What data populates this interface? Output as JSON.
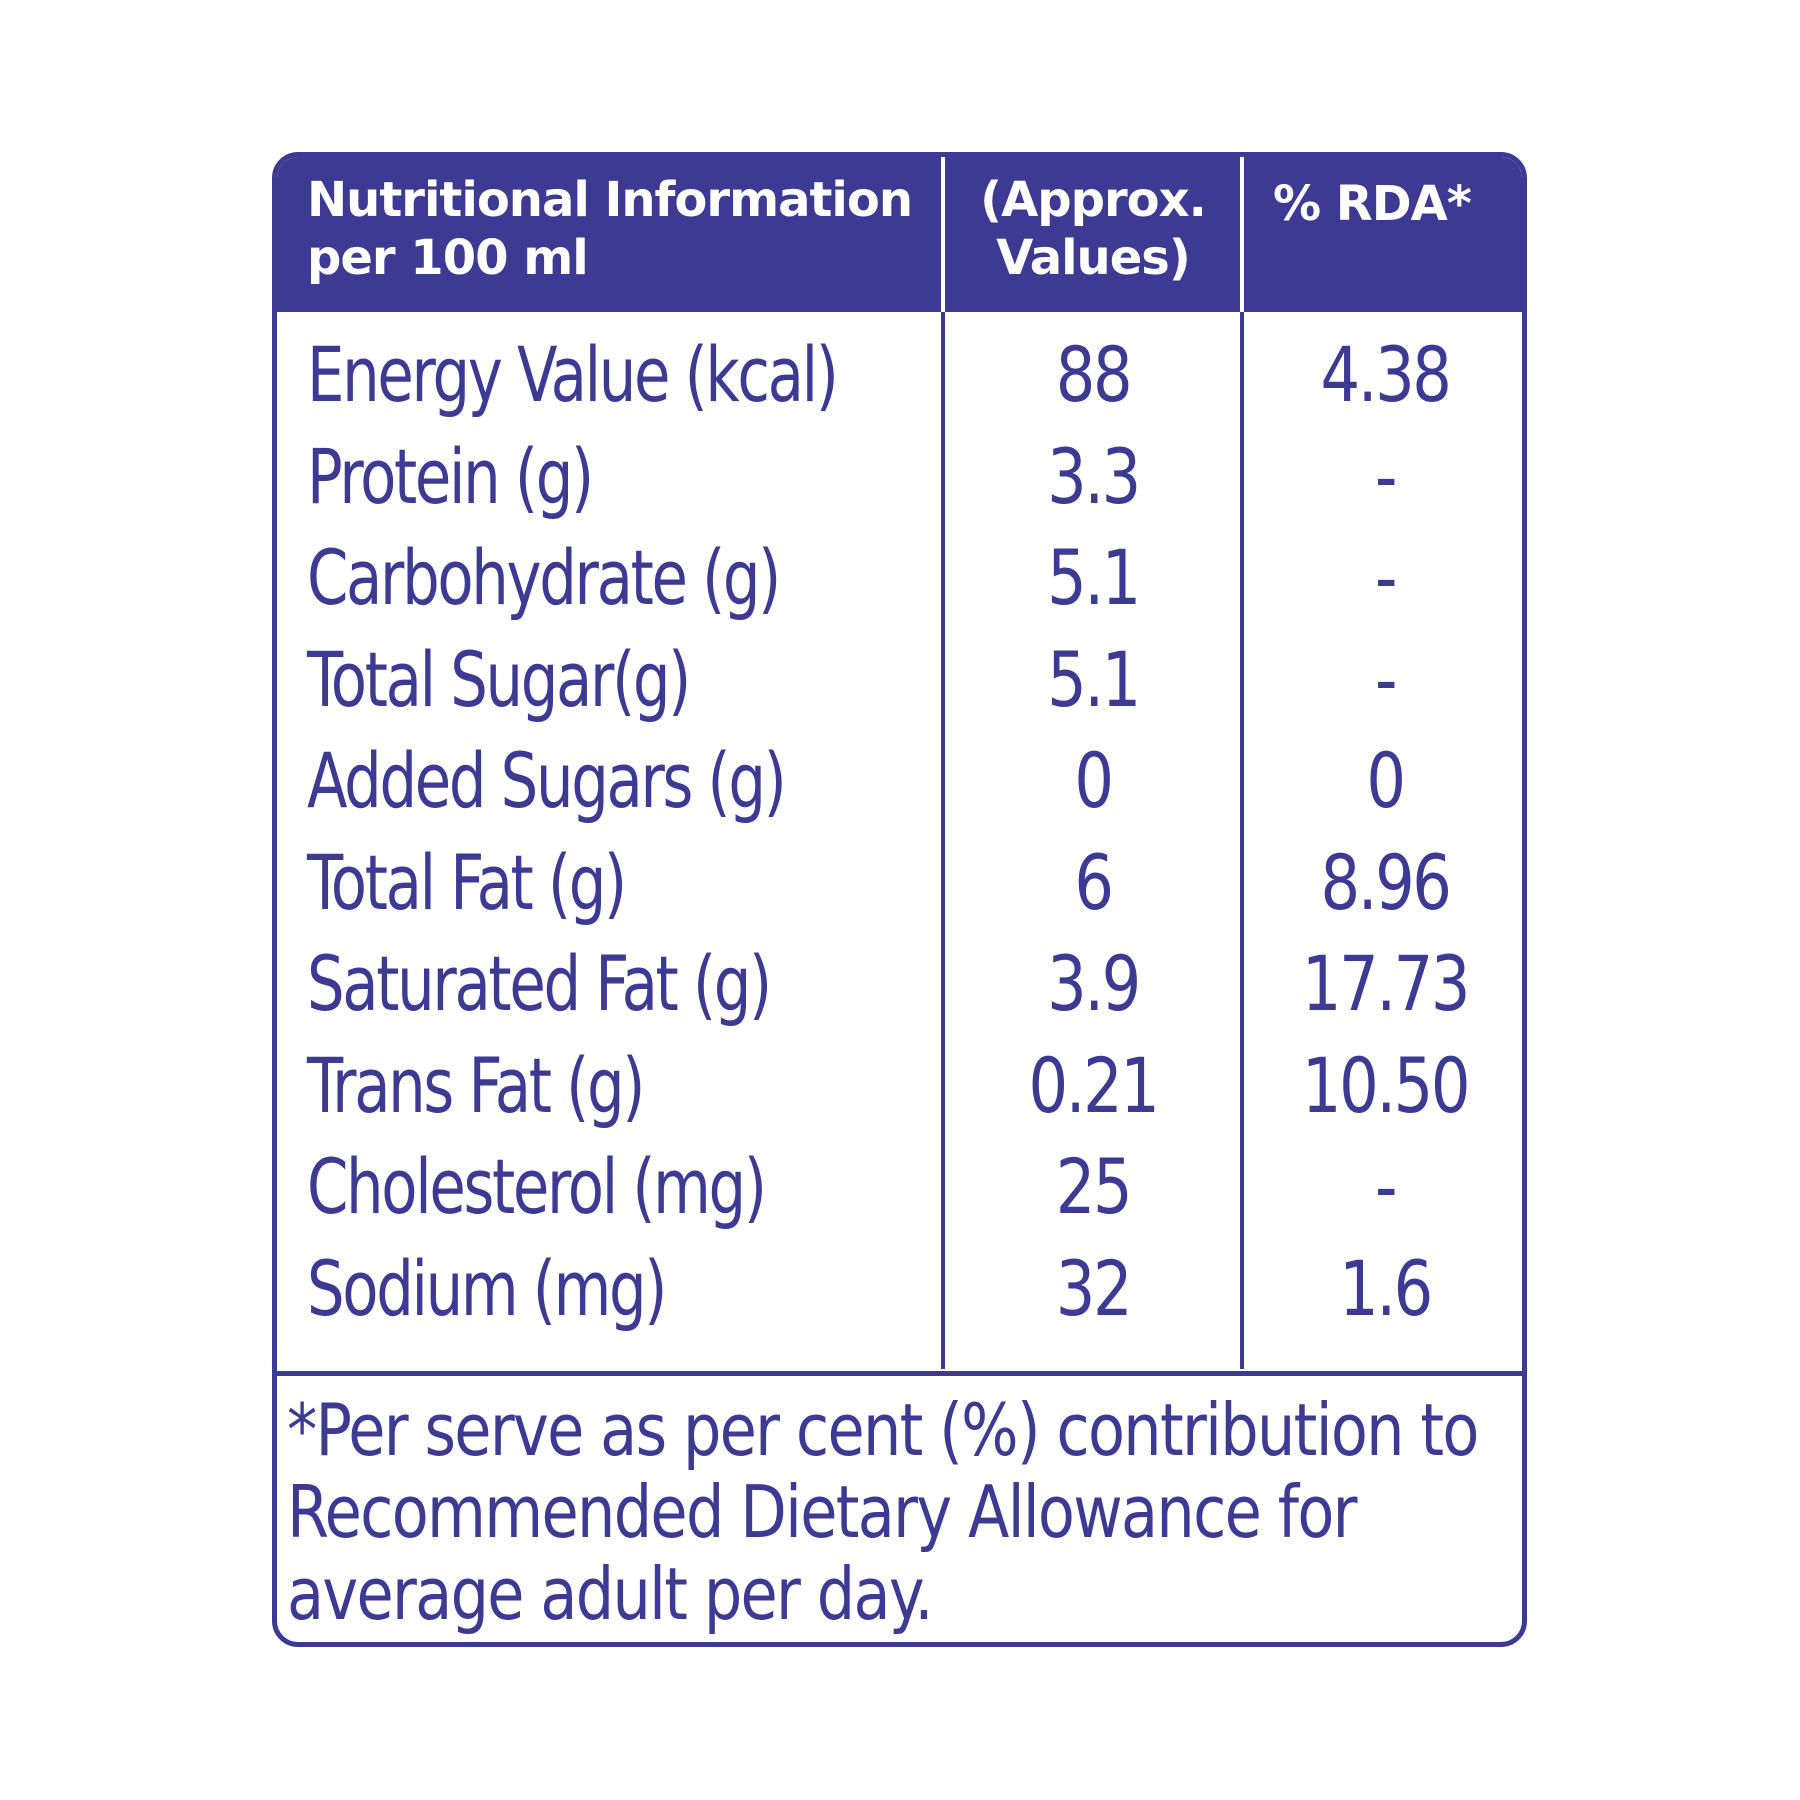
{
  "header": {
    "name_line1": "Nutritional Information",
    "name_line2": "per 100 ml",
    "value_line1": "(Approx.",
    "value_line2": "Values)",
    "rda": "% RDA*"
  },
  "rows": [
    {
      "name": "Energy Value (kcal)",
      "value": "88",
      "rda": "4.38"
    },
    {
      "name": "Protein (g)",
      "value": "3.3",
      "rda": "-"
    },
    {
      "name": "Carbohydrate (g)",
      "value": "5.1",
      "rda": "-"
    },
    {
      "name": "Total Sugar(g)",
      "value": "5.1",
      "rda": "-"
    },
    {
      "name": "Added Sugars (g)",
      "value": "0",
      "rda": "0"
    },
    {
      "name": "Total Fat (g)",
      "value": "6",
      "rda": "8.96"
    },
    {
      "name": "Saturated Fat (g)",
      "value": "3.9",
      "rda": "17.73"
    },
    {
      "name": "Trans Fat (g)",
      "value": "0.21",
      "rda": "10.50"
    },
    {
      "name": "Cholesterol (mg)",
      "value": "25",
      "rda": "-"
    },
    {
      "name": "Sodium (mg)",
      "value": "32",
      "rda": "1.6"
    }
  ],
  "footnote": {
    "line1": "*Per serve as per cent (%) contribution to",
    "line2": "Recommended Dietary Allowance for",
    "line3": "average adult per day."
  },
  "colors": {
    "brand": "#3d3a94",
    "background": "#ffffff"
  }
}
